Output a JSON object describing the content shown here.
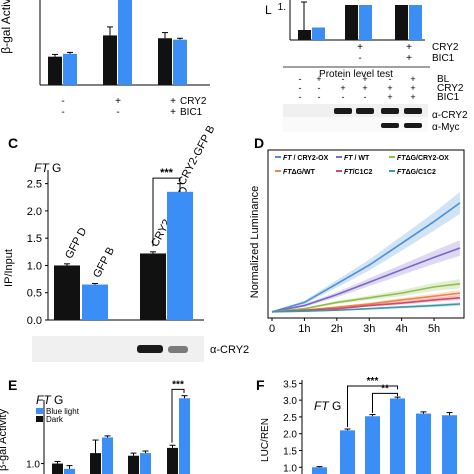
{
  "colors": {
    "black_series": "#111111",
    "blue_series": "#3a8ef6",
    "blot_bg": "#f0f0f0",
    "band": "#1a1a1a"
  },
  "panels": {
    "A": {
      "letter": "",
      "ylabel": "β-gal Activity",
      "row_labels": [
        "CRY2",
        "BIC1"
      ],
      "signs": [
        [
          "-",
          "-"
        ],
        [
          "+",
          "-"
        ],
        [
          "+",
          "+"
        ]
      ]
    },
    "B": {
      "letter": "",
      "ylabel": "L",
      "row_labels": [
        "CRY2",
        "BIC1"
      ],
      "signs": [
        [
          "+",
          "-"
        ],
        [
          "+",
          "+"
        ]
      ],
      "blot_title": "Protein level test",
      "blot_rows": [
        "BL",
        "CRY2",
        "BIC1"
      ],
      "blot_signs": [
        [
          "-",
          "+",
          "-",
          "+",
          "-",
          "+"
        ],
        [
          "-",
          "-",
          "+",
          "+",
          "+",
          "+"
        ],
        [
          "-",
          "-",
          "-",
          "-",
          "+",
          "+"
        ]
      ],
      "blot_labels": [
        "α-CRY2",
        "α-Myc"
      ]
    },
    "C": {
      "letter": "C",
      "tag_italic": "FT",
      "tag_plain": " G",
      "ylabel": "IP/Input",
      "bar_labels": [
        "GFP D",
        "GFP B",
        "CRY2-GFP  D",
        "CRY2-GFP B"
      ],
      "significance": "***",
      "blot_label": "α-CRY2"
    },
    "D": {
      "letter": "D",
      "ylabel": "Normalized Luminance",
      "legend": [
        {
          "italic": "FT",
          "plain": " / CRY2-OX",
          "color": "#4a90d9"
        },
        {
          "italic": "FT",
          "plain": " / WT",
          "color": "#7b68c8"
        },
        {
          "italic": "FT",
          "plain": "ΔG/CRY2-OX",
          "color": "#8fbf4a"
        },
        {
          "italic": "FT",
          "plain": "ΔG/WT",
          "color": "#e8874a"
        },
        {
          "italic": "FT",
          "plain": "/C1C2",
          "color": "#d04a6a"
        },
        {
          "italic": "FT",
          "plain": "ΔG/C1C2",
          "color": "#3a9aa8"
        }
      ]
    },
    "E": {
      "letter": "E",
      "tag_italic": "FT",
      "tag_plain": " G",
      "ylabel": "β-gal Activity",
      "legend": [
        "Blue light",
        "Dark"
      ],
      "significance": "***"
    },
    "F": {
      "letter": "F",
      "tag_italic": "FT",
      "tag_plain": " G",
      "ylabel": "LUC/REN",
      "significance_top": "***",
      "significance_mid": "**"
    }
  },
  "chart_data": [
    {
      "panel": "A",
      "type": "bar",
      "ylabel": "β-gal Activity",
      "categories": [
        "- / -",
        "+ / -",
        "+ / +"
      ],
      "series": [
        {
          "values": [
            1.0,
            1.75,
            1.65
          ]
        },
        {
          "values": [
            1.1,
            3.0,
            1.6
          ]
        }
      ],
      "errors": [
        [
          0.08,
          0.3,
          0.2
        ],
        [
          0.05,
          0.0,
          0.05
        ]
      ],
      "ylim": [
        0,
        3.0
      ],
      "ticks_visible": []
    },
    {
      "panel": "B",
      "type": "bar",
      "ylabel": "L",
      "series": [
        {
          "values": [
            1.0,
            1.5,
            1.5
          ]
        },
        {
          "values": [
            1.05,
            1.5,
            1.5
          ]
        }
      ],
      "ylim": [
        0,
        1.6
      ],
      "ticks": [
        1.0
      ]
    },
    {
      "panel": "C",
      "type": "bar",
      "ylabel": "IP/Input",
      "categories": [
        "GFP D",
        "GFP B",
        "CRY2-GFP  D",
        "CRY2-GFP B"
      ],
      "values": [
        1.0,
        0.65,
        1.22,
        2.35
      ],
      "errors": [
        0.03,
        0.02,
        0.03,
        0.15
      ],
      "ylim": [
        0,
        2.75
      ],
      "ticks": [
        0,
        0.5,
        1.0,
        1.5,
        2.0,
        2.5
      ],
      "significance": "***"
    },
    {
      "panel": "D",
      "type": "line",
      "ylabel": "Normalized Luminance",
      "x": [
        "0",
        "1h",
        "2h",
        "3h",
        "4h",
        "5h"
      ],
      "xlim": [
        0,
        5.8
      ],
      "series": [
        {
          "name": "FT / CRY2-OX",
          "x": [
            0,
            1,
            2,
            3,
            4,
            5,
            5.8
          ],
          "values": [
            1.0,
            1.3,
            1.9,
            2.5,
            3.2,
            3.9,
            4.5
          ]
        },
        {
          "name": "FT / WT",
          "x": [
            0,
            1,
            2,
            3,
            4,
            5,
            5.8
          ],
          "values": [
            1.0,
            1.2,
            1.55,
            1.95,
            2.35,
            2.75,
            3.05
          ]
        },
        {
          "name": "FTΔG/CRY2-OX",
          "x": [
            0,
            1,
            2,
            3,
            4,
            5,
            5.8
          ],
          "values": [
            1.0,
            1.1,
            1.3,
            1.45,
            1.6,
            1.8,
            1.9
          ]
        },
        {
          "name": "FTΔG/WT",
          "x": [
            0,
            1,
            2,
            3,
            4,
            5,
            5.8
          ],
          "values": [
            1.0,
            1.05,
            1.15,
            1.25,
            1.38,
            1.5,
            1.6
          ]
        },
        {
          "name": "FT/C1C2",
          "x": [
            0,
            1,
            2,
            3,
            4,
            5,
            5.8
          ],
          "values": [
            1.0,
            1.05,
            1.1,
            1.2,
            1.28,
            1.38,
            1.45
          ]
        },
        {
          "name": "FTΔG/C1C2",
          "x": [
            0,
            1,
            2,
            3,
            4,
            5,
            5.8
          ],
          "values": [
            1.0,
            1.02,
            1.05,
            1.1,
            1.15,
            1.2,
            1.25
          ]
        }
      ],
      "ylim": [
        0.8,
        6.2
      ]
    },
    {
      "panel": "E",
      "type": "bar",
      "ylabel": "β-gal Activity",
      "series": [
        {
          "name": "Blue light",
          "values": [
            0.9,
            1.5,
            1.2,
            2.25
          ]
        },
        {
          "name": "Dark",
          "values": [
            1.0,
            1.2,
            1.15,
            1.3
          ]
        }
      ],
      "errors": [
        [
          0.06,
          0.03,
          0.04,
          0.05
        ],
        [
          0.04,
          0.25,
          0.05,
          0.05
        ]
      ],
      "ylim": [
        0.8,
        2.6
      ],
      "significance": "***"
    },
    {
      "panel": "F",
      "type": "bar",
      "ylabel": "LUC/REN",
      "values": [
        1.0,
        2.1,
        2.52,
        3.05,
        2.6,
        2.55
      ],
      "errors": [
        0.02,
        0.04,
        0.05,
        0.04,
        0.05,
        0.08
      ],
      "ylim": [
        0.8,
        3.6
      ],
      "ticks": [
        "1.0",
        "1.5",
        "2.0",
        "2.5",
        "3.0",
        "3.5"
      ],
      "significance": [
        "***",
        "**"
      ]
    }
  ]
}
